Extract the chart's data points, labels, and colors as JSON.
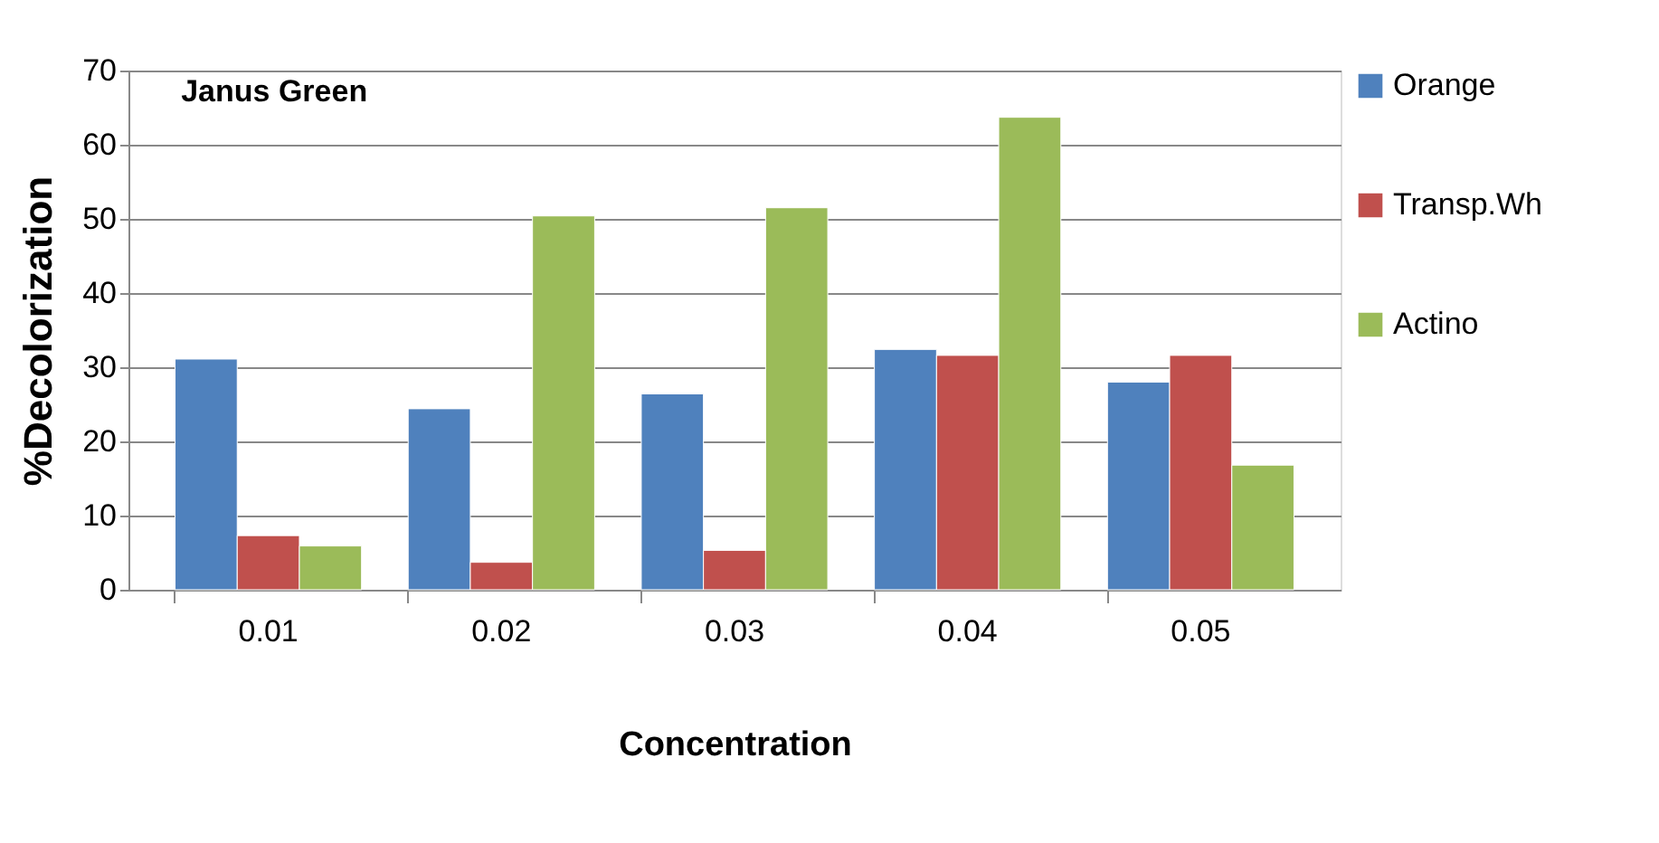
{
  "chart_data": {
    "type": "bar",
    "title": "Janus Green",
    "xlabel": "Concentration",
    "ylabel": "%Decolorization",
    "categories": [
      "0.01",
      "0.02",
      "0.03",
      "0.04",
      "0.05"
    ],
    "series": [
      {
        "name": "Orange",
        "color": "#4f81bd",
        "values": [
          31.1,
          24.4,
          26.4,
          32.4,
          28.0
        ]
      },
      {
        "name": "Transp.Wh",
        "color": "#c0504d",
        "values": [
          7.3,
          3.7,
          5.3,
          31.6,
          31.6
        ]
      },
      {
        "name": "Actino",
        "color": "#9bbb59",
        "values": [
          5.9,
          50.4,
          51.5,
          63.7,
          16.8
        ]
      }
    ],
    "ylim": [
      0,
      70
    ],
    "yticks": [
      0,
      10,
      20,
      30,
      40,
      50,
      60,
      70
    ],
    "grid": "y",
    "legend": "right"
  }
}
